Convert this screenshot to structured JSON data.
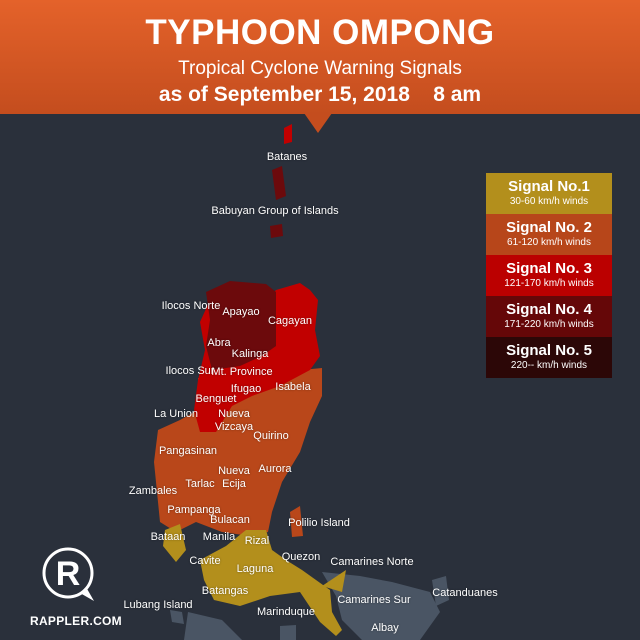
{
  "header": {
    "title": "TYPHOON OMPONG",
    "subtitle": "Tropical Cyclone Warning Signals",
    "date": "as of September 15, 2018    8 am"
  },
  "legend": [
    {
      "label": "Signal No.1",
      "winds": "30-60 km/h winds",
      "color": "#b38f1c"
    },
    {
      "label": "Signal No. 2",
      "winds": "61-120 km/h winds",
      "color": "#b7461a"
    },
    {
      "label": "Signal No. 3",
      "winds": "121-170 km/h winds",
      "color": "#bb0000"
    },
    {
      "label": "Signal No. 4",
      "winds": "171-220 km/h winds",
      "color": "#650708"
    },
    {
      "label": "Signal No. 5",
      "winds": "220-- km/h winds",
      "color": "#2c0707"
    }
  ],
  "places": {
    "batanes": "Batanes",
    "babuyan": "Babuyan Group of Islands",
    "ilocos_norte": "Ilocos Norte",
    "apayao": "Apayao",
    "cagayan": "Cagayan",
    "abra": "Abra",
    "kalinga": "Kalinga",
    "ilocos_sur": "Ilocos Sur",
    "mt_province": "Mt. Province",
    "ifugao": "Ifugao",
    "isabela": "Isabela",
    "benguet": "Benguet",
    "la_union": "La Union",
    "nueva_vizcaya_1": "Nueva",
    "nueva_vizcaya_2": "Vizcaya",
    "quirino": "Quirino",
    "pangasinan": "Pangasinan",
    "aurora": "Aurora",
    "nueva_ecija_1": "Nueva",
    "nueva_ecija_2": "Ecija",
    "tarlac": "Tarlac",
    "zambales": "Zambales",
    "pampanga": "Pampanga",
    "bulacan": "Bulacan",
    "polilio": "Polilio Island",
    "bataan": "Bataan",
    "manila": "Manila",
    "rizal": "Rizal",
    "cavite": "Cavite",
    "quezon": "Quezon",
    "camarines_norte": "Camarines Norte",
    "laguna": "Laguna",
    "batangas": "Batangas",
    "catanduanes": "Catanduanes",
    "camarines_sur": "Camarines Sur",
    "lubang": "Lubang Island",
    "marinduque": "Marinduque",
    "albay": "Albay"
  },
  "logo": {
    "text": "RAPPLER.COM"
  }
}
